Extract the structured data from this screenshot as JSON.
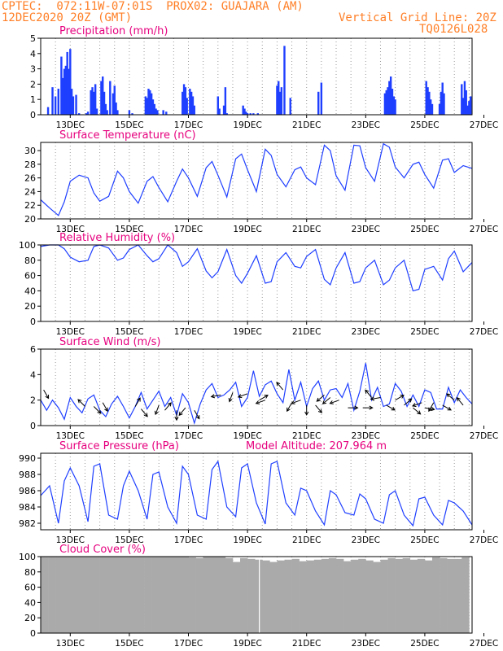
{
  "header": {
    "line1": "CPTEC:  072:11W-07:01S  PROX02: GUAJARA (AM)",
    "line2": "12DEC2020 20Z (GMT)",
    "grid_note": "Vertical Grid Line: 20Z",
    "code": "TQ0126L028"
  },
  "colors": {
    "header": "#ff7f27",
    "title": "#e6007e",
    "series": "#1f3fff",
    "cloud": "#aaaaaa",
    "grid": "#999999"
  },
  "chart_data": [
    {
      "type": "bar",
      "name": "precipitation",
      "title": "Precipitation (mm/h)",
      "xlim": [
        0,
        14.6
      ],
      "ylim": [
        0,
        5
      ],
      "yticks": [
        0,
        1,
        2,
        3,
        4,
        5
      ],
      "xticks": [
        "13DEC",
        "15DEC",
        "17DEC",
        "19DEC",
        "21DEC",
        "23DEC",
        "25DEC",
        "27DEC"
      ],
      "x": [
        0.25,
        0.4,
        0.5,
        0.6,
        0.7,
        0.75,
        0.8,
        0.85,
        0.9,
        0.95,
        1.0,
        1.05,
        1.1,
        1.2,
        1.3,
        1.55,
        1.6,
        1.7,
        1.75,
        1.8,
        1.85,
        1.9,
        2.05,
        2.1,
        2.15,
        2.2,
        2.25,
        2.35,
        2.45,
        2.5,
        2.55,
        2.6,
        3.0,
        3.1,
        3.55,
        3.6,
        3.65,
        3.7,
        3.75,
        3.8,
        3.85,
        3.9,
        3.95,
        4.15,
        4.25,
        4.8,
        4.85,
        4.9,
        4.95,
        5.05,
        5.1,
        5.15,
        5.2,
        6.0,
        6.05,
        6.2,
        6.25,
        6.3,
        6.85,
        6.9,
        6.95,
        7.0,
        7.1,
        7.2,
        7.35,
        8.0,
        8.05,
        8.1,
        8.15,
        8.25,
        8.45,
        9.4,
        9.5,
        11.65,
        11.7,
        11.75,
        11.8,
        11.85,
        11.9,
        11.95,
        12.0,
        13.05,
        13.1,
        13.15,
        13.2,
        13.25,
        13.5,
        13.55,
        13.6,
        13.65,
        14.25,
        14.3,
        14.35,
        14.4,
        14.45,
        14.5,
        14.55
      ],
      "values": [
        0.5,
        1.8,
        1.2,
        1.7,
        3.8,
        2.4,
        3.0,
        3.2,
        4.1,
        3.0,
        4.3,
        1.7,
        1.2,
        1.3,
        0.1,
        0.1,
        0.2,
        1.6,
        1.8,
        1.5,
        2.0,
        0.4,
        2.2,
        2.5,
        1.5,
        0.7,
        0.3,
        2.2,
        1.4,
        1.9,
        0.8,
        0.3,
        0.3,
        0.1,
        1.2,
        1.1,
        1.7,
        1.6,
        1.4,
        1.0,
        0.7,
        0.4,
        0.3,
        0.3,
        0.2,
        1.5,
        2.0,
        1.8,
        1.1,
        1.7,
        1.5,
        1.2,
        0.6,
        1.2,
        0.4,
        0.6,
        1.8,
        0.1,
        0.6,
        0.4,
        0.2,
        0.1,
        0.1,
        0.1,
        0.1,
        1.9,
        2.2,
        1.5,
        1.8,
        4.5,
        1.1,
        1.5,
        2.1,
        1.4,
        1.6,
        1.8,
        2.2,
        2.5,
        1.7,
        1.2,
        1.0,
        2.2,
        1.8,
        1.5,
        1.0,
        0.7,
        0.7,
        1.5,
        2.1,
        1.4,
        2.0,
        1.1,
        2.2,
        1.6,
        0.6,
        0.9,
        1.2
      ]
    },
    {
      "type": "line",
      "name": "surface-temperature",
      "title": "Surface Temperature (nC)",
      "xlim": [
        0,
        14.6
      ],
      "ylim": [
        20,
        31.2
      ],
      "yticks": [
        20,
        22,
        24,
        26,
        28,
        30
      ],
      "xticks": [
        "13DEC",
        "15DEC",
        "17DEC",
        "19DEC",
        "21DEC",
        "23DEC",
        "25DEC",
        "27DEC"
      ],
      "x": [
        0.0,
        0.3,
        0.6,
        0.8,
        1.0,
        1.3,
        1.6,
        1.8,
        2.0,
        2.3,
        2.6,
        2.8,
        3.0,
        3.3,
        3.6,
        3.8,
        4.0,
        4.3,
        4.6,
        4.8,
        5.0,
        5.3,
        5.6,
        5.8,
        6.0,
        6.3,
        6.6,
        6.8,
        7.0,
        7.3,
        7.6,
        7.8,
        8.0,
        8.3,
        8.6,
        8.8,
        9.0,
        9.3,
        9.6,
        9.8,
        10.0,
        10.3,
        10.6,
        10.8,
        11.0,
        11.3,
        11.6,
        11.8,
        12.0,
        12.3,
        12.6,
        12.8,
        13.0,
        13.3,
        13.6,
        13.8,
        14.0,
        14.3,
        14.6
      ],
      "values": [
        22.8,
        21.6,
        20.5,
        22.5,
        25.5,
        26.4,
        26.0,
        23.8,
        22.6,
        23.3,
        27.0,
        26.0,
        24.0,
        22.3,
        25.5,
        26.2,
        24.6,
        22.5,
        25.5,
        27.3,
        26.0,
        23.3,
        27.5,
        28.4,
        26.4,
        23.2,
        28.8,
        29.5,
        27.2,
        24.0,
        30.2,
        29.3,
        26.5,
        24.7,
        27.2,
        27.6,
        26.0,
        25.0,
        30.8,
        30.0,
        26.3,
        24.2,
        30.8,
        30.7,
        27.5,
        25.5,
        31.0,
        30.5,
        27.6,
        26.0,
        28.0,
        28.3,
        26.5,
        24.5,
        28.6,
        28.8,
        26.8,
        27.8,
        27.4
      ]
    },
    {
      "type": "line",
      "name": "relative-humidity",
      "title": "Relative Humidity (%)",
      "xlim": [
        0,
        14.6
      ],
      "ylim": [
        0,
        100
      ],
      "yticks": [
        0,
        20,
        40,
        60,
        80,
        100
      ],
      "xticks": [
        "13DEC",
        "15DEC",
        "17DEC",
        "19DEC",
        "21DEC",
        "23DEC",
        "25DEC",
        "27DEC"
      ],
      "x": [
        0.0,
        0.3,
        0.6,
        0.8,
        1.0,
        1.3,
        1.6,
        1.8,
        2.0,
        2.3,
        2.6,
        2.8,
        3.0,
        3.3,
        3.6,
        3.8,
        4.0,
        4.3,
        4.6,
        4.8,
        5.0,
        5.3,
        5.6,
        5.8,
        6.0,
        6.3,
        6.6,
        6.8,
        7.0,
        7.3,
        7.6,
        7.8,
        8.0,
        8.3,
        8.6,
        8.8,
        9.0,
        9.3,
        9.6,
        9.8,
        10.0,
        10.3,
        10.6,
        10.8,
        11.0,
        11.3,
        11.6,
        11.8,
        12.0,
        12.3,
        12.6,
        12.8,
        13.0,
        13.3,
        13.6,
        13.8,
        14.0,
        14.3,
        14.6
      ],
      "values": [
        98,
        100,
        100,
        95,
        84,
        78,
        80,
        98,
        100,
        96,
        80,
        83,
        94,
        100,
        86,
        78,
        82,
        100,
        90,
        72,
        78,
        95,
        66,
        57,
        65,
        94,
        60,
        50,
        63,
        86,
        50,
        52,
        78,
        90,
        72,
        70,
        85,
        94,
        55,
        48,
        70,
        90,
        50,
        52,
        70,
        80,
        48,
        54,
        70,
        80,
        40,
        42,
        68,
        72,
        54,
        82,
        92,
        65,
        77
      ]
    },
    {
      "type": "line",
      "name": "surface-wind",
      "title": "Surface Wind (m/s)",
      "xlim": [
        0,
        14.6
      ],
      "ylim": [
        0,
        6
      ],
      "yticks": [
        0,
        2,
        4,
        6
      ],
      "xticks": [
        "13DEC",
        "15DEC",
        "17DEC",
        "19DEC",
        "21DEC",
        "23DEC",
        "25DEC",
        "27DEC"
      ],
      "x": [
        0.0,
        0.2,
        0.4,
        0.6,
        0.8,
        1.0,
        1.2,
        1.4,
        1.6,
        1.8,
        2.0,
        2.2,
        2.4,
        2.6,
        2.8,
        3.0,
        3.2,
        3.4,
        3.6,
        3.8,
        4.0,
        4.2,
        4.4,
        4.6,
        4.8,
        5.0,
        5.2,
        5.4,
        5.6,
        5.8,
        6.0,
        6.2,
        6.4,
        6.6,
        6.8,
        7.0,
        7.2,
        7.4,
        7.6,
        7.8,
        8.0,
        8.2,
        8.4,
        8.6,
        8.8,
        9.0,
        9.2,
        9.4,
        9.6,
        9.8,
        10.0,
        10.2,
        10.4,
        10.6,
        10.8,
        11.0,
        11.2,
        11.4,
        11.6,
        11.8,
        12.0,
        12.2,
        12.4,
        12.6,
        12.8,
        13.0,
        13.2,
        13.4,
        13.6,
        13.8,
        14.0,
        14.2,
        14.4,
        14.6
      ],
      "values": [
        2.0,
        1.2,
        2.0,
        1.4,
        0.5,
        2.2,
        1.5,
        1.0,
        2.1,
        2.4,
        1.2,
        0.7,
        1.7,
        2.3,
        1.5,
        0.6,
        1.5,
        2.6,
        1.3,
        2.0,
        2.7,
        1.5,
        2.2,
        0.8,
        2.5,
        1.8,
        0.2,
        1.7,
        2.8,
        3.3,
        2.2,
        2.4,
        2.8,
        3.4,
        1.5,
        2.2,
        4.3,
        2.3,
        3.2,
        3.5,
        2.5,
        1.8,
        4.4,
        2.0,
        3.4,
        1.5,
        2.9,
        3.5,
        2.0,
        2.8,
        2.9,
        2.2,
        3.3,
        1.2,
        2.7,
        4.9,
        2.0,
        3.0,
        1.5,
        1.7,
        3.3,
        2.7,
        1.5,
        2.4,
        1.5,
        2.8,
        2.6,
        1.3,
        1.3,
        3.0,
        1.8,
        2.8,
        2.2,
        1.7
      ],
      "arrows_x": [
        0.1,
        1.5,
        1.8,
        2.1,
        3.2,
        3.4,
        4.0,
        4.2,
        4.6,
        4.9,
        5.2,
        6.1,
        6.5,
        7.0,
        7.4,
        7.6,
        8.2,
        8.5,
        8.8,
        9.0,
        9.3,
        9.6,
        9.8,
        10.1,
        10.4,
        10.9,
        11.2,
        11.5,
        11.7,
        12.0,
        12.3,
        12.6,
        12.9,
        13.0,
        13.3,
        13.6,
        14.0,
        14.3
      ],
      "arrows_dir_deg": [
        150,
        315,
        135,
        150,
        30,
        140,
        200,
        40,
        180,
        220,
        150,
        260,
        200,
        250,
        60,
        250,
        320,
        210,
        250,
        180,
        140,
        230,
        230,
        250,
        90,
        90,
        320,
        260,
        120,
        60,
        50,
        130,
        250,
        100,
        210,
        120,
        310,
        320
      ],
      "arrows_speed": [
        2.8,
        1.5,
        1.5,
        1.8,
        1.5,
        1.3,
        1.6,
        1.2,
        1.2,
        1.4,
        1.2,
        2.4,
        2.6,
        2.5,
        2.0,
        2.0,
        2.8,
        1.8,
        2.0,
        1.6,
        1.6,
        2.4,
        2.2,
        2.0,
        1.4,
        1.4,
        2.2,
        2.2,
        1.6,
        2.0,
        1.6,
        1.4,
        1.8,
        1.4,
        1.8,
        1.6,
        2.0,
        1.6
      ]
    },
    {
      "type": "line",
      "name": "surface-pressure",
      "title": "Surface Pressure (hPa)",
      "annotation": "Model Altitude: 207.964 m",
      "xlim": [
        0,
        14.6
      ],
      "ylim": [
        981.2,
        990.6
      ],
      "yticks": [
        982,
        984,
        986,
        988,
        990
      ],
      "xticks": [
        "13DEC",
        "15DEC",
        "17DEC",
        "19DEC",
        "21DEC",
        "23DEC",
        "25DEC",
        "27DEC"
      ],
      "x": [
        0.0,
        0.3,
        0.6,
        0.8,
        1.0,
        1.3,
        1.6,
        1.8,
        2.0,
        2.3,
        2.6,
        2.8,
        3.0,
        3.3,
        3.6,
        3.8,
        4.0,
        4.3,
        4.6,
        4.8,
        5.0,
        5.3,
        5.6,
        5.8,
        6.0,
        6.3,
        6.6,
        6.8,
        7.0,
        7.3,
        7.6,
        7.8,
        8.0,
        8.3,
        8.6,
        8.8,
        9.0,
        9.3,
        9.6,
        9.8,
        10.0,
        10.3,
        10.6,
        10.8,
        11.0,
        11.3,
        11.6,
        11.8,
        12.0,
        12.3,
        12.6,
        12.8,
        13.0,
        13.3,
        13.6,
        13.8,
        14.0,
        14.3,
        14.6
      ],
      "values": [
        985.4,
        986.6,
        982.0,
        987.2,
        988.8,
        986.6,
        982.2,
        989.0,
        989.3,
        983.0,
        982.5,
        986.6,
        988.4,
        986.0,
        982.5,
        988.0,
        988.3,
        984.0,
        982.0,
        989.0,
        988.0,
        983.0,
        982.5,
        988.6,
        989.6,
        984.0,
        982.8,
        988.8,
        989.3,
        984.5,
        981.9,
        989.3,
        989.6,
        984.5,
        983.0,
        986.3,
        986.0,
        983.5,
        981.8,
        986.0,
        985.5,
        983.3,
        983.0,
        985.6,
        985.0,
        982.5,
        982.0,
        985.5,
        986.0,
        983.0,
        981.7,
        985.0,
        985.2,
        983.0,
        981.8,
        984.8,
        984.5,
        983.5,
        981.8
      ]
    },
    {
      "type": "bar",
      "name": "cloud-cover",
      "title": "Cloud Cover (%)",
      "xlim": [
        0,
        14.6
      ],
      "ylim": [
        0,
        100
      ],
      "yticks": [
        0,
        20,
        40,
        60,
        80,
        100
      ],
      "xticks": [
        "13DEC",
        "15DEC",
        "17DEC",
        "19DEC",
        "21DEC",
        "23DEC",
        "25DEC",
        "27DEC"
      ],
      "x": [
        0.125,
        0.375,
        0.625,
        0.875,
        1.125,
        1.375,
        1.625,
        1.875,
        2.125,
        2.375,
        2.625,
        2.875,
        3.125,
        3.375,
        3.625,
        3.875,
        4.125,
        4.375,
        4.625,
        4.875,
        5.125,
        5.375,
        5.625,
        5.875,
        6.125,
        6.375,
        6.625,
        6.875,
        7.125,
        7.375,
        7.625,
        7.875,
        8.125,
        8.375,
        8.625,
        8.875,
        9.125,
        9.375,
        9.625,
        9.875,
        10.125,
        10.375,
        10.625,
        10.875,
        11.125,
        11.375,
        11.625,
        11.875,
        12.125,
        12.375,
        12.625,
        12.875,
        13.125,
        13.375,
        13.625,
        13.875,
        14.125,
        14.375
      ],
      "values": [
        100,
        100,
        100,
        100,
        100,
        100,
        100,
        100,
        100,
        100,
        100,
        100,
        100,
        100,
        100,
        100,
        100,
        100,
        100,
        100,
        99,
        98,
        100,
        100,
        100,
        98,
        93,
        98,
        97,
        96,
        95,
        93,
        95,
        96,
        97,
        94,
        95,
        96,
        97,
        98,
        97,
        94,
        96,
        97,
        95,
        93,
        96,
        98,
        97,
        98,
        96,
        97,
        95,
        99,
        98,
        97,
        97,
        99
      ]
    }
  ]
}
